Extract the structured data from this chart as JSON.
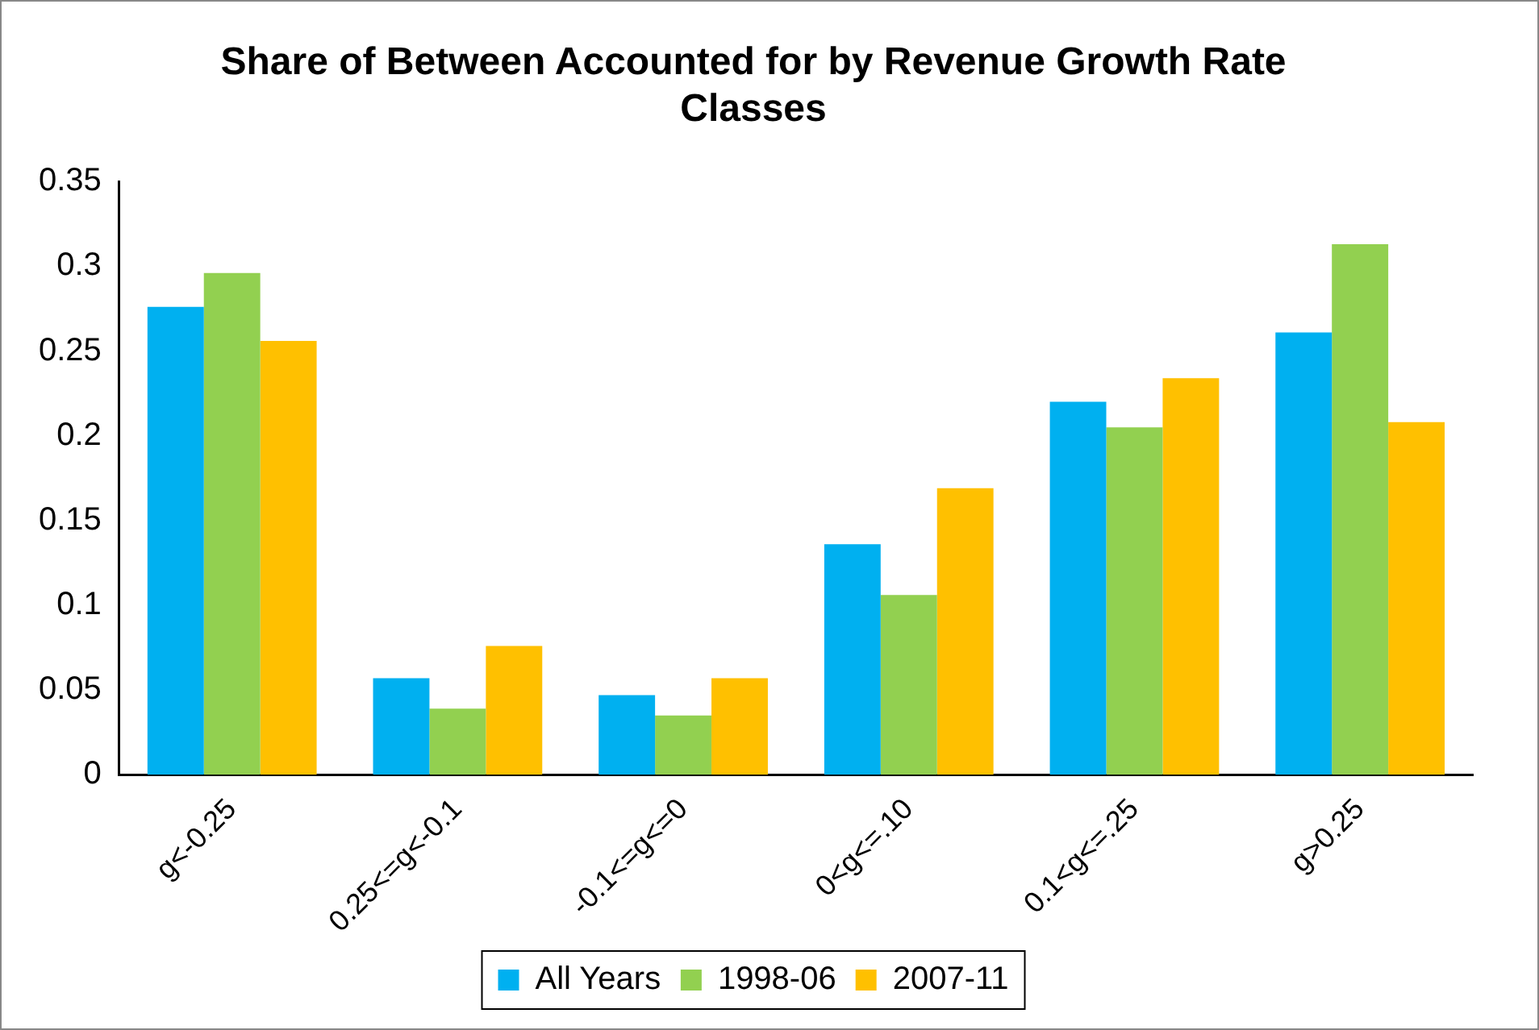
{
  "chart_data": {
    "type": "bar",
    "title": "Share of Between Accounted for by Revenue Growth Rate Classes",
    "categories": [
      "g<-0.25",
      "0.25<=g<-0.1",
      "-0.1<=g<=0",
      "0<g<=.10",
      "0.1<g<=.25",
      "g>0.25"
    ],
    "series": [
      {
        "name": "All Years",
        "color": "#00b0f0",
        "values": [
          0.276,
          0.057,
          0.047,
          0.136,
          0.22,
          0.261
        ]
      },
      {
        "name": "1998-06",
        "color": "#92d050",
        "values": [
          0.296,
          0.039,
          0.035,
          0.106,
          0.205,
          0.313
        ]
      },
      {
        "name": "2007-11",
        "color": "#ffc000",
        "values": [
          0.256,
          0.076,
          0.057,
          0.169,
          0.234,
          0.208
        ]
      }
    ],
    "ylim": [
      0,
      0.35
    ],
    "yticks": [
      0,
      0.05,
      0.1,
      0.15,
      0.2,
      0.25,
      0.3,
      0.35
    ],
    "grid": false,
    "legend": "bottom"
  }
}
